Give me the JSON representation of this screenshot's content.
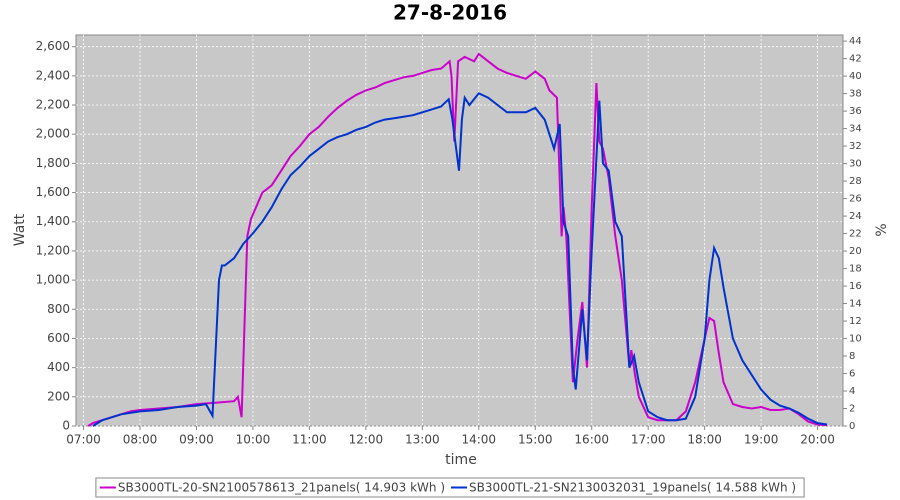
{
  "chart_data": {
    "type": "line",
    "title": "27-8-2016",
    "x_label": "time",
    "y_label": "Watt",
    "y2_label": "%",
    "grid": true,
    "legend": "bottom",
    "background": "#c8c8c8",
    "xlim": [
      "06:52",
      "20:27"
    ],
    "xticks": [
      "07:00",
      "08:00",
      "09:00",
      "10:00",
      "11:00",
      "12:00",
      "13:00",
      "14:00",
      "15:00",
      "16:00",
      "17:00",
      "18:00",
      "19:00",
      "20:00"
    ],
    "ylim": [
      0,
      2680
    ],
    "yticks": [
      0,
      200,
      400,
      600,
      800,
      {
        "value": 1000,
        "label": "1,000"
      },
      {
        "value": 1200,
        "label": "1,200"
      },
      {
        "value": 1400,
        "label": "1,400"
      },
      {
        "value": 1600,
        "label": "1,600"
      },
      {
        "value": 1800,
        "label": "1,800"
      },
      {
        "value": 2000,
        "label": "2,000"
      },
      {
        "value": 2200,
        "label": "2,200"
      },
      {
        "value": 2400,
        "label": "2,400"
      },
      {
        "value": 2600,
        "label": "2,600"
      }
    ],
    "y2lim": [
      0,
      44.7
    ],
    "y2ticks": [
      0,
      2,
      4,
      6,
      8,
      10,
      12,
      14,
      16,
      18,
      20,
      22,
      24,
      26,
      28,
      30,
      32,
      34,
      36,
      38,
      40,
      42,
      44
    ],
    "series": [
      {
        "name": "SB3000TL-20-SN2100578613_21panels( 14.903 kWh )",
        "color": "#cc00cc",
        "x": [
          "07:05",
          "07:10",
          "07:30",
          "07:50",
          "08:00",
          "08:20",
          "08:40",
          "09:00",
          "09:20",
          "09:40",
          "09:44",
          "09:48",
          "09:54",
          "09:58",
          "10:00",
          "10:10",
          "10:20",
          "10:30",
          "10:40",
          "10:50",
          "11:00",
          "11:10",
          "11:20",
          "11:30",
          "11:40",
          "11:50",
          "12:00",
          "12:10",
          "12:20",
          "12:30",
          "12:40",
          "12:50",
          "13:00",
          "13:10",
          "13:20",
          "13:29",
          "13:31",
          "13:34",
          "13:38",
          "13:45",
          "13:55",
          "14:00",
          "14:10",
          "14:20",
          "14:30",
          "14:40",
          "14:50",
          "15:00",
          "15:10",
          "15:15",
          "15:23",
          "15:28",
          "15:30",
          "15:33",
          "15:40",
          "15:45",
          "15:50",
          "15:55",
          "16:00",
          "16:05",
          "16:08",
          "16:12",
          "16:18",
          "16:25",
          "16:32",
          "16:40",
          "16:42",
          "16:46",
          "16:50",
          "17:00",
          "17:10",
          "17:20",
          "17:30",
          "17:40",
          "17:50",
          "18:00",
          "18:05",
          "18:10",
          "18:15",
          "18:20",
          "18:30",
          "18:40",
          "18:50",
          "19:00",
          "19:10",
          "19:20",
          "19:30",
          "19:40",
          "19:50",
          "20:00",
          "20:10"
        ],
        "values": [
          0,
          20,
          60,
          100,
          110,
          120,
          130,
          150,
          160,
          170,
          200,
          60,
          1300,
          1420,
          1450,
          1600,
          1650,
          1750,
          1850,
          1920,
          2000,
          2050,
          2120,
          2180,
          2230,
          2270,
          2300,
          2320,
          2350,
          2370,
          2390,
          2400,
          2420,
          2440,
          2450,
          2500,
          2400,
          1950,
          2500,
          2530,
          2500,
          2550,
          2500,
          2450,
          2420,
          2400,
          2380,
          2430,
          2380,
          2300,
          2250,
          1300,
          1500,
          1300,
          300,
          600,
          850,
          400,
          1500,
          2350,
          1950,
          1900,
          1700,
          1300,
          1000,
          400,
          520,
          350,
          200,
          60,
          40,
          40,
          40,
          100,
          300,
          600,
          740,
          720,
          500,
          300,
          150,
          130,
          120,
          130,
          110,
          110,
          120,
          80,
          30,
          10,
          5
        ]
      },
      {
        "name": "SB3000TL-21-SN2130032031_19panels( 14.588 kWh )",
        "color": "#0033cc",
        "x": [
          "07:10",
          "07:20",
          "07:40",
          "08:00",
          "08:20",
          "08:40",
          "09:00",
          "09:10",
          "09:17",
          "09:24",
          "09:27",
          "09:30",
          "09:40",
          "09:50",
          "10:00",
          "10:10",
          "10:20",
          "10:30",
          "10:40",
          "10:50",
          "11:00",
          "11:10",
          "11:20",
          "11:30",
          "11:40",
          "11:50",
          "12:00",
          "12:10",
          "12:20",
          "12:30",
          "12:40",
          "12:50",
          "13:00",
          "13:10",
          "13:20",
          "13:28",
          "13:32",
          "13:39",
          "13:42",
          "13:45",
          "13:50",
          "14:00",
          "14:10",
          "14:20",
          "14:30",
          "14:40",
          "14:50",
          "15:00",
          "15:10",
          "15:15",
          "15:20",
          "15:26",
          "15:30",
          "15:35",
          "15:40",
          "15:43",
          "15:50",
          "15:55",
          "16:00",
          "16:08",
          "16:12",
          "16:18",
          "16:25",
          "16:32",
          "16:40",
          "16:45",
          "16:50",
          "17:00",
          "17:10",
          "17:20",
          "17:30",
          "17:40",
          "17:50",
          "18:00",
          "18:05",
          "18:10",
          "18:15",
          "18:20",
          "18:30",
          "18:40",
          "18:50",
          "19:00",
          "19:10",
          "19:20",
          "19:30",
          "19:40",
          "19:50",
          "20:00",
          "20:10"
        ],
        "values": [
          0,
          40,
          80,
          100,
          110,
          130,
          140,
          150,
          70,
          1000,
          1100,
          1100,
          1150,
          1250,
          1320,
          1400,
          1500,
          1620,
          1720,
          1780,
          1850,
          1900,
          1950,
          1980,
          2000,
          2030,
          2050,
          2080,
          2100,
          2110,
          2120,
          2130,
          2150,
          2170,
          2190,
          2240,
          2100,
          1750,
          2100,
          2250,
          2200,
          2280,
          2250,
          2200,
          2150,
          2150,
          2150,
          2180,
          2100,
          2000,
          1900,
          2070,
          1400,
          1300,
          400,
          250,
          800,
          450,
          1200,
          2230,
          1800,
          1750,
          1400,
          1300,
          400,
          480,
          300,
          100,
          60,
          40,
          40,
          50,
          200,
          600,
          1000,
          1220,
          1150,
          950,
          600,
          450,
          350,
          250,
          180,
          140,
          120,
          90,
          50,
          20,
          10
        ]
      }
    ]
  }
}
